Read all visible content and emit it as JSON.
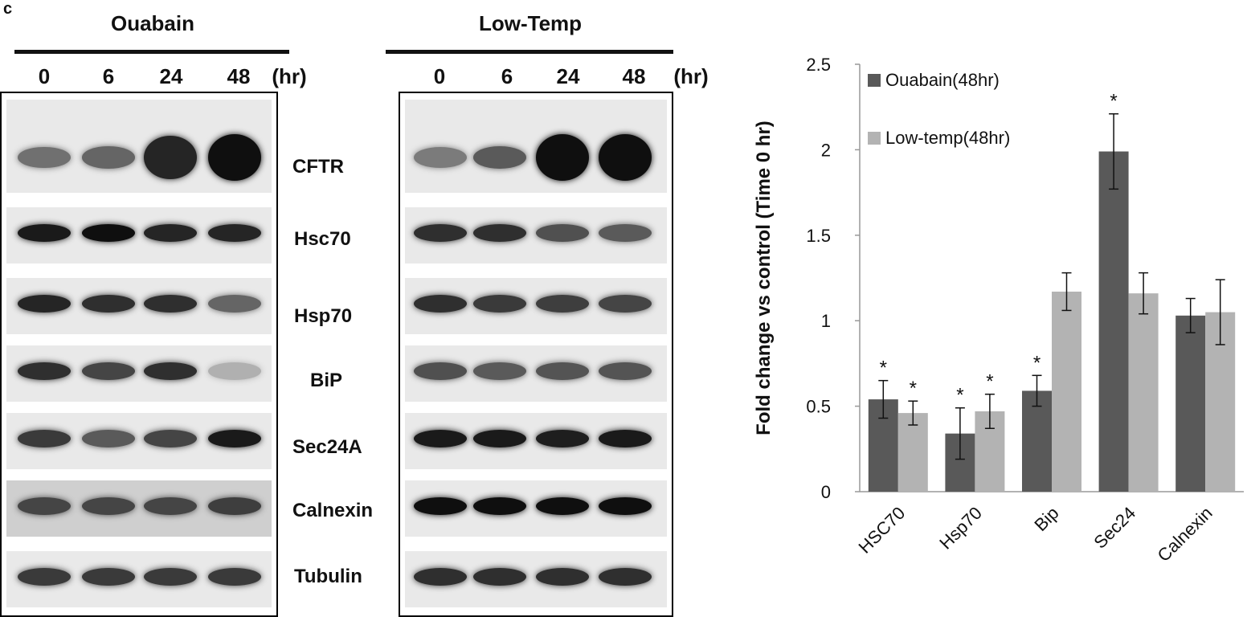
{
  "panel_letter": "c",
  "blot": {
    "time_unit": "(hr)",
    "conditions": [
      {
        "title": "Ouabain",
        "timepoints": [
          "0",
          "6",
          "24",
          "48"
        ]
      },
      {
        "title": "Low-Temp",
        "timepoints": [
          "0",
          "6",
          "24",
          "48"
        ]
      }
    ],
    "proteins": [
      "CFTR",
      "Hsc70",
      "Hsp70",
      "BiP",
      "Sec24A",
      "Calnexin",
      "Tubulin"
    ]
  },
  "chart_data": {
    "type": "bar",
    "ylabel": "Fold change vs control (Time 0 hr)",
    "xlabel": "",
    "ylim": [
      0,
      2.5
    ],
    "yticks": [
      "0",
      "0.5",
      "1",
      "1.5",
      "2",
      "2.5"
    ],
    "categories": [
      "HSC70",
      "Hsp70",
      "Bip",
      "Sec24",
      "Calnexin"
    ],
    "series": [
      {
        "name": "Ouabain(48hr)",
        "color": "#595959",
        "values": [
          0.54,
          0.34,
          0.59,
          1.99,
          1.03
        ],
        "errors": [
          0.11,
          0.15,
          0.09,
          0.22,
          0.1
        ],
        "significant": [
          "*",
          "*",
          "*",
          "*",
          ""
        ]
      },
      {
        "name": "Low-temp(48hr)",
        "color": "#b3b3b3",
        "values": [
          0.46,
          0.47,
          1.17,
          1.16,
          1.05
        ],
        "errors": [
          0.07,
          0.1,
          0.11,
          0.12,
          0.19
        ],
        "significant": [
          "*",
          "*",
          "",
          "",
          ""
        ]
      }
    ],
    "legend": "top-left inside"
  }
}
